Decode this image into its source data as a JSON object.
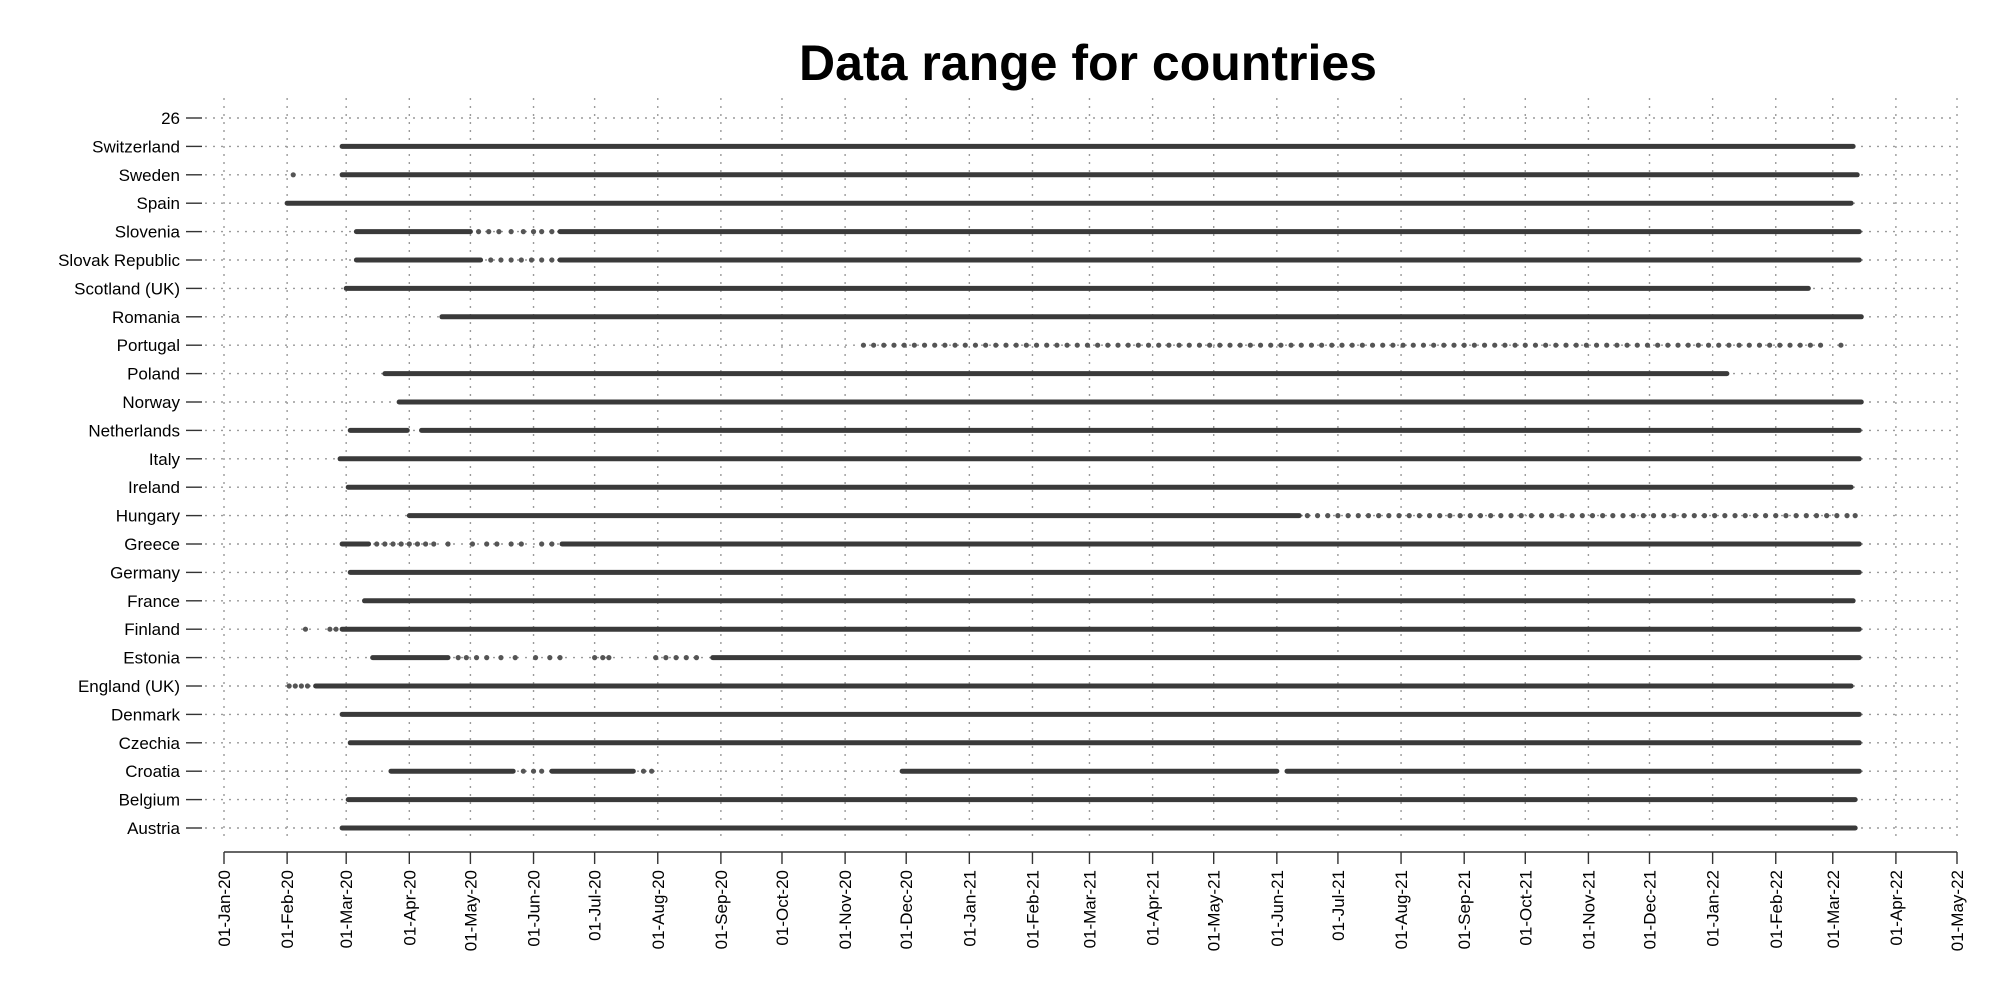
{
  "chart_data": {
    "type": "scatter",
    "title": "Data range for countries",
    "xlabel": "",
    "ylabel": "",
    "x_axis": {
      "min": "2020-01-01",
      "max": "2022-05-01",
      "ticks": [
        {
          "date": "2020-01-01",
          "label": "01-Jan-20"
        },
        {
          "date": "2020-02-01",
          "label": "01-Feb-20"
        },
        {
          "date": "2020-03-01",
          "label": "01-Mar-20"
        },
        {
          "date": "2020-04-01",
          "label": "01-Apr-20"
        },
        {
          "date": "2020-05-01",
          "label": "01-May-20"
        },
        {
          "date": "2020-06-01",
          "label": "01-Jun-20"
        },
        {
          "date": "2020-07-01",
          "label": "01-Jul-20"
        },
        {
          "date": "2020-08-01",
          "label": "01-Aug-20"
        },
        {
          "date": "2020-09-01",
          "label": "01-Sep-20"
        },
        {
          "date": "2020-10-01",
          "label": "01-Oct-20"
        },
        {
          "date": "2020-11-01",
          "label": "01-Nov-20"
        },
        {
          "date": "2020-12-01",
          "label": "01-Dec-20"
        },
        {
          "date": "2021-01-01",
          "label": "01-Jan-21"
        },
        {
          "date": "2021-02-01",
          "label": "01-Feb-21"
        },
        {
          "date": "2021-03-01",
          "label": "01-Mar-21"
        },
        {
          "date": "2021-04-01",
          "label": "01-Apr-21"
        },
        {
          "date": "2021-05-01",
          "label": "01-May-21"
        },
        {
          "date": "2021-06-01",
          "label": "01-Jun-21"
        },
        {
          "date": "2021-07-01",
          "label": "01-Jul-21"
        },
        {
          "date": "2021-08-01",
          "label": "01-Aug-21"
        },
        {
          "date": "2021-09-01",
          "label": "01-Sep-21"
        },
        {
          "date": "2021-10-01",
          "label": "01-Oct-21"
        },
        {
          "date": "2021-11-01",
          "label": "01-Nov-21"
        },
        {
          "date": "2021-12-01",
          "label": "01-Dec-21"
        },
        {
          "date": "2022-01-01",
          "label": "01-Jan-22"
        },
        {
          "date": "2022-02-01",
          "label": "01-Feb-22"
        },
        {
          "date": "2022-03-01",
          "label": "01-Mar-22"
        },
        {
          "date": "2022-04-01",
          "label": "01-Apr-22"
        },
        {
          "date": "2022-05-01",
          "label": "01-May-22"
        }
      ]
    },
    "grid": "dotted",
    "legend": "none",
    "series": [
      {
        "name": "Austria",
        "segments": [
          [
            "2020-02-28",
            "2022-03-12"
          ]
        ],
        "dots": []
      },
      {
        "name": "Belgium",
        "segments": [
          [
            "2020-03-02",
            "2022-03-12"
          ]
        ],
        "dots": []
      },
      {
        "name": "Croatia",
        "segments": [
          [
            "2020-03-23",
            "2020-05-22"
          ],
          [
            "2020-06-10",
            "2020-07-20"
          ],
          [
            "2020-11-29",
            "2021-06-01"
          ],
          [
            "2021-06-06",
            "2022-03-14"
          ]
        ],
        "dots": [
          "2020-05-27",
          "2020-06-01",
          "2020-06-05",
          "2020-07-25",
          "2020-07-29"
        ]
      },
      {
        "name": "Czechia",
        "segments": [
          [
            "2020-03-03",
            "2022-03-14"
          ]
        ],
        "dots": []
      },
      {
        "name": "Denmark",
        "segments": [
          [
            "2020-02-28",
            "2022-03-14"
          ]
        ],
        "dots": []
      },
      {
        "name": "England (UK)",
        "segments": [
          [
            "2020-02-15",
            "2022-03-10"
          ]
        ],
        "dots": [
          "2020-02-02",
          "2020-02-05",
          "2020-02-08",
          "2020-02-11"
        ]
      },
      {
        "name": "Estonia",
        "segments": [
          [
            "2020-03-14",
            "2020-04-20"
          ],
          [
            "2020-08-28",
            "2022-03-14"
          ]
        ],
        "dots": [
          "2020-04-25",
          "2020-04-29",
          "2020-05-04",
          "2020-05-09",
          "2020-05-16",
          "2020-05-23",
          "2020-06-02",
          "2020-06-09",
          "2020-06-14",
          "2020-07-01",
          "2020-07-05",
          "2020-07-08",
          "2020-07-31",
          "2020-08-05",
          "2020-08-10",
          "2020-08-15",
          "2020-08-20"
        ]
      },
      {
        "name": "Finland",
        "segments": [
          [
            "2020-02-28",
            "2022-03-14"
          ]
        ],
        "dots": [
          "2020-02-10",
          "2020-02-22",
          "2020-02-25"
        ]
      },
      {
        "name": "France",
        "segments": [
          [
            "2020-03-10",
            "2022-03-11"
          ]
        ],
        "dots": []
      },
      {
        "name": "Germany",
        "segments": [
          [
            "2020-03-03",
            "2022-03-14"
          ]
        ],
        "dots": []
      },
      {
        "name": "Greece",
        "segments": [
          [
            "2020-02-28",
            "2020-03-12"
          ],
          [
            "2020-06-15",
            "2022-03-14"
          ]
        ],
        "dots": [
          "2020-03-16",
          "2020-03-20",
          "2020-03-24",
          "2020-03-28",
          "2020-04-01",
          "2020-04-05",
          "2020-04-09",
          "2020-04-13",
          "2020-04-20",
          "2020-05-02",
          "2020-05-09",
          "2020-05-14",
          "2020-05-21",
          "2020-05-26",
          "2020-06-05",
          "2020-06-10"
        ]
      },
      {
        "name": "Hungary",
        "segments": [
          [
            "2020-04-01",
            "2021-06-12"
          ]
        ],
        "dots": [
          "2021-06-16",
          "2021-06-21",
          "2021-06-26",
          "2021-07-01",
          "2021-07-06",
          "2021-07-11",
          "2021-07-16",
          "2021-07-21",
          "2021-07-26",
          "2021-07-31",
          "2021-08-05",
          "2021-08-10",
          "2021-08-15",
          "2021-08-20",
          "2021-08-25",
          "2021-08-30",
          "2021-09-04",
          "2021-09-09",
          "2021-09-14",
          "2021-09-19",
          "2021-09-24",
          "2021-09-29",
          "2021-10-04",
          "2021-10-09",
          "2021-10-14",
          "2021-10-19",
          "2021-10-24",
          "2021-10-29",
          "2021-11-03",
          "2021-11-08",
          "2021-11-13",
          "2021-11-18",
          "2021-11-23",
          "2021-11-28",
          "2021-12-03",
          "2021-12-08",
          "2021-12-13",
          "2021-12-18",
          "2021-12-23",
          "2021-12-28",
          "2022-01-02",
          "2022-01-07",
          "2022-01-12",
          "2022-01-17",
          "2022-01-22",
          "2022-01-27",
          "2022-02-01",
          "2022-02-06",
          "2022-02-11",
          "2022-02-16",
          "2022-02-21",
          "2022-02-26",
          "2022-03-03",
          "2022-03-08",
          "2022-03-12"
        ]
      },
      {
        "name": "Ireland",
        "segments": [
          [
            "2020-03-02",
            "2022-03-10"
          ]
        ],
        "dots": []
      },
      {
        "name": "Italy",
        "segments": [
          [
            "2020-02-27",
            "2022-03-14"
          ]
        ],
        "dots": []
      },
      {
        "name": "Netherlands",
        "segments": [
          [
            "2020-03-03",
            "2020-03-31"
          ],
          [
            "2020-04-07",
            "2022-03-14"
          ]
        ],
        "dots": []
      },
      {
        "name": "Norway",
        "segments": [
          [
            "2020-03-27",
            "2022-03-15"
          ]
        ],
        "dots": []
      },
      {
        "name": "Poland",
        "segments": [
          [
            "2020-03-20",
            "2022-01-08"
          ]
        ],
        "dots": []
      },
      {
        "name": "Portugal",
        "segments": [],
        "dots": [
          "2020-11-10",
          "2020-11-15",
          "2020-11-20",
          "2020-11-25",
          "2020-11-30",
          "2020-12-05",
          "2020-12-10",
          "2020-12-15",
          "2020-12-20",
          "2020-12-25",
          "2020-12-30",
          "2021-01-04",
          "2021-01-09",
          "2021-01-14",
          "2021-01-19",
          "2021-01-24",
          "2021-01-29",
          "2021-02-03",
          "2021-02-08",
          "2021-02-13",
          "2021-02-18",
          "2021-02-23",
          "2021-02-28",
          "2021-03-05",
          "2021-03-10",
          "2021-03-15",
          "2021-03-20",
          "2021-03-25",
          "2021-03-30",
          "2021-04-04",
          "2021-04-09",
          "2021-04-14",
          "2021-04-19",
          "2021-04-24",
          "2021-04-29",
          "2021-05-04",
          "2021-05-09",
          "2021-05-14",
          "2021-05-19",
          "2021-05-24",
          "2021-05-29",
          "2021-06-03",
          "2021-06-08",
          "2021-06-13",
          "2021-06-18",
          "2021-06-23",
          "2021-06-28",
          "2021-07-03",
          "2021-07-08",
          "2021-07-13",
          "2021-07-18",
          "2021-07-23",
          "2021-07-28",
          "2021-08-02",
          "2021-08-07",
          "2021-08-12",
          "2021-08-17",
          "2021-08-22",
          "2021-08-27",
          "2021-09-01",
          "2021-09-06",
          "2021-09-11",
          "2021-09-16",
          "2021-09-21",
          "2021-09-26",
          "2021-10-01",
          "2021-10-06",
          "2021-10-11",
          "2021-10-16",
          "2021-10-21",
          "2021-10-26",
          "2021-10-31",
          "2021-11-05",
          "2021-11-10",
          "2021-11-15",
          "2021-11-20",
          "2021-11-25",
          "2021-11-30",
          "2021-12-05",
          "2021-12-10",
          "2021-12-15",
          "2021-12-20",
          "2021-12-25",
          "2021-12-30",
          "2022-01-04",
          "2022-01-09",
          "2022-01-14",
          "2022-01-19",
          "2022-01-24",
          "2022-01-29",
          "2022-02-03",
          "2022-02-08",
          "2022-02-13",
          "2022-02-18",
          "2022-02-23",
          "2022-03-05"
        ]
      },
      {
        "name": "Romania",
        "segments": [
          [
            "2020-04-17",
            "2022-03-15"
          ]
        ],
        "dots": []
      },
      {
        "name": "Scotland (UK)",
        "segments": [
          [
            "2020-03-01",
            "2022-02-17"
          ]
        ],
        "dots": []
      },
      {
        "name": "Slovak Republic",
        "segments": [
          [
            "2020-03-06",
            "2020-05-06"
          ],
          [
            "2020-06-14",
            "2022-03-14"
          ]
        ],
        "dots": [
          "2020-05-11",
          "2020-05-16",
          "2020-05-21",
          "2020-05-26",
          "2020-05-31",
          "2020-06-05",
          "2020-06-10"
        ]
      },
      {
        "name": "Slovenia",
        "segments": [
          [
            "2020-03-06",
            "2020-05-01"
          ],
          [
            "2020-06-14",
            "2022-03-14"
          ]
        ],
        "dots": [
          "2020-05-05",
          "2020-05-10",
          "2020-05-15",
          "2020-05-21",
          "2020-05-27",
          "2020-06-01",
          "2020-06-05",
          "2020-06-10"
        ]
      },
      {
        "name": "Spain",
        "segments": [
          [
            "2020-02-01",
            "2022-03-10"
          ]
        ],
        "dots": []
      },
      {
        "name": "Sweden",
        "segments": [
          [
            "2020-02-28",
            "2022-03-13"
          ]
        ],
        "dots": [
          "2020-02-04"
        ]
      },
      {
        "name": "Switzerland",
        "segments": [
          [
            "2020-02-28",
            "2022-03-11"
          ]
        ],
        "dots": []
      }
    ],
    "y_top_label": "26"
  }
}
